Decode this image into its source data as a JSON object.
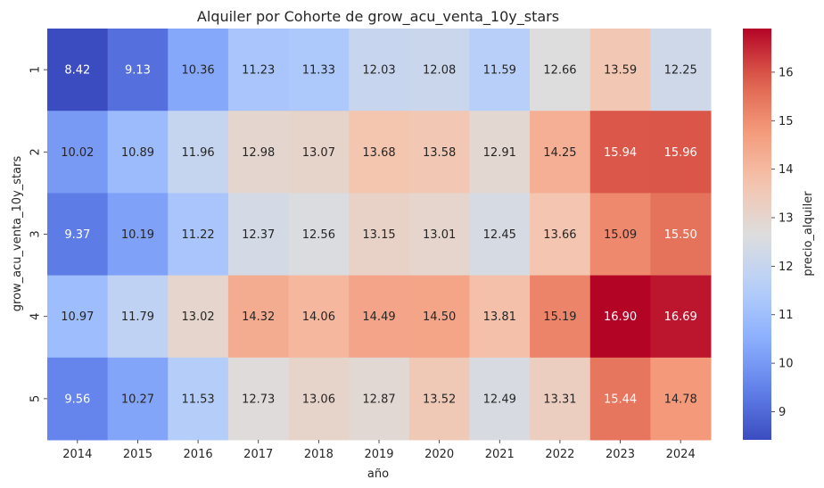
{
  "chart_data": {
    "type": "heatmap",
    "title": "Alquiler por Cohorte de grow_acu_venta_10y_stars",
    "xlabel": "año",
    "ylabel": "grow_acu_venta_10y_stars",
    "colorbar_label": "precio_alquiler",
    "colormap": "coolwarm",
    "x": [
      "2014",
      "2015",
      "2016",
      "2017",
      "2018",
      "2019",
      "2020",
      "2021",
      "2022",
      "2023",
      "2024"
    ],
    "y": [
      "1",
      "2",
      "3",
      "4",
      "5"
    ],
    "values": [
      [
        8.42,
        9.13,
        10.36,
        11.23,
        11.33,
        12.03,
        12.08,
        11.59,
        12.66,
        13.59,
        12.25
      ],
      [
        10.02,
        10.89,
        11.96,
        12.98,
        13.07,
        13.68,
        13.58,
        12.91,
        14.25,
        15.94,
        15.96
      ],
      [
        9.37,
        10.19,
        11.22,
        12.37,
        12.56,
        13.15,
        13.01,
        12.45,
        13.66,
        15.09,
        15.5
      ],
      [
        10.97,
        11.79,
        13.02,
        14.32,
        14.06,
        14.49,
        14.5,
        13.81,
        15.19,
        16.9,
        16.69
      ],
      [
        9.56,
        10.27,
        11.53,
        12.73,
        13.06,
        12.87,
        13.52,
        12.49,
        13.31,
        15.44,
        14.78
      ]
    ],
    "value_labels": [
      [
        "8.42",
        "9.13",
        "10.36",
        "11.23",
        "11.33",
        "12.03",
        "12.08",
        "11.59",
        "12.66",
        "13.59",
        "12.25"
      ],
      [
        "10.02",
        "10.89",
        "11.96",
        "12.98",
        "13.07",
        "13.68",
        "13.58",
        "12.91",
        "14.25",
        "15.94",
        "15.96"
      ],
      [
        "9.37",
        "10.19",
        "11.22",
        "12.37",
        "12.56",
        "13.15",
        "13.01",
        "12.45",
        "13.66",
        "15.09",
        "15.50"
      ],
      [
        "10.97",
        "11.79",
        "13.02",
        "14.32",
        "14.06",
        "14.49",
        "14.50",
        "13.81",
        "15.19",
        "16.90",
        "16.69"
      ],
      [
        "9.56",
        "10.27",
        "11.53",
        "12.73",
        "13.06",
        "12.87",
        "13.52",
        "12.49",
        "13.31",
        "15.44",
        "14.78"
      ]
    ],
    "vmin": 8.42,
    "vmax": 16.9,
    "colorbar_ticks": [
      9,
      10,
      11,
      12,
      13,
      14,
      15,
      16
    ]
  }
}
